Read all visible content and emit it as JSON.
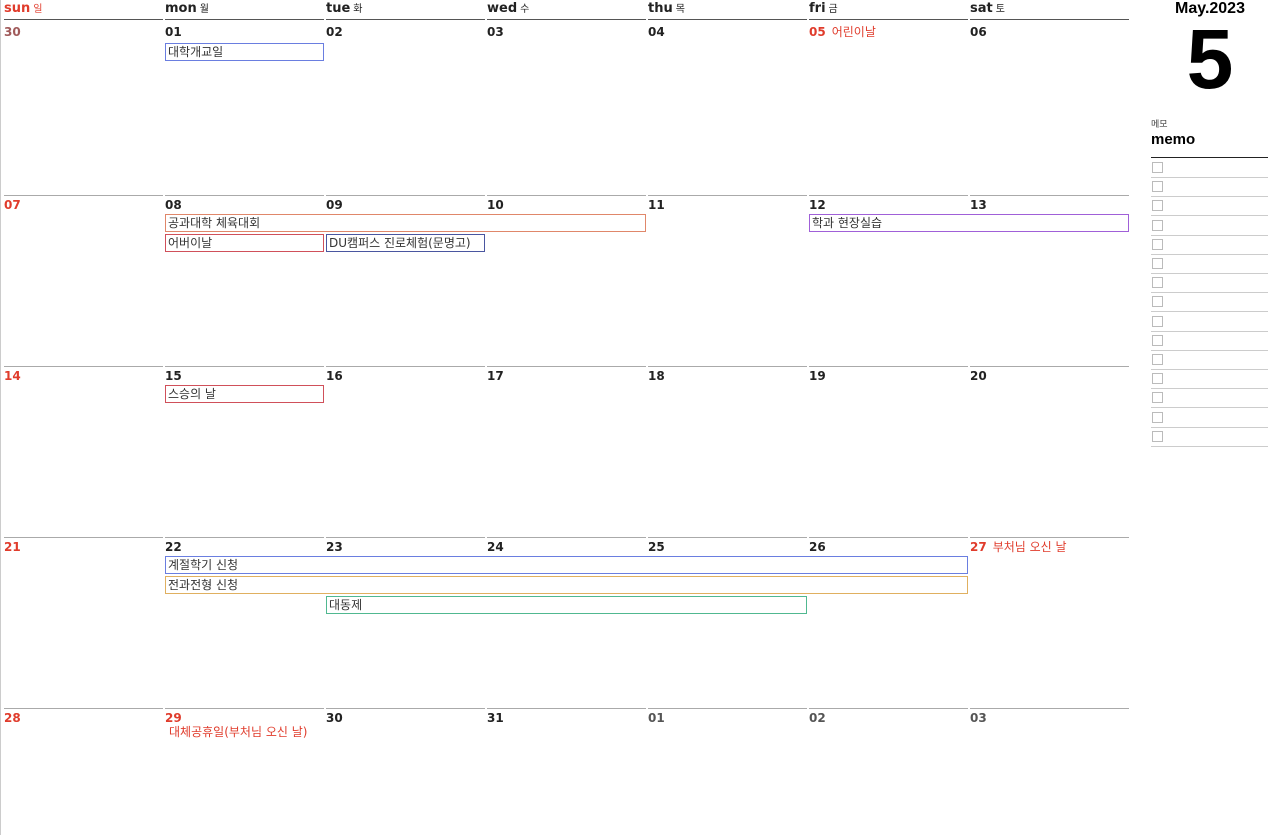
{
  "header": {
    "month_year": "May.2023",
    "month_number": "5"
  },
  "weekdays": [
    {
      "en": "sun",
      "ko": "일"
    },
    {
      "en": "mon",
      "ko": "월"
    },
    {
      "en": "tue",
      "ko": "화"
    },
    {
      "en": "wed",
      "ko": "수"
    },
    {
      "en": "thu",
      "ko": "목"
    },
    {
      "en": "fri",
      "ko": "금"
    },
    {
      "en": "sat",
      "ko": "토"
    }
  ],
  "weeks": [
    [
      {
        "d": "30",
        "color": "#a05a5a"
      },
      {
        "d": "01"
      },
      {
        "d": "02"
      },
      {
        "d": "03"
      },
      {
        "d": "04"
      },
      {
        "d": "05",
        "color": "#e03c2c",
        "holiday": "어린이날"
      },
      {
        "d": "06"
      }
    ],
    [
      {
        "d": "07",
        "color": "#e03c2c"
      },
      {
        "d": "08"
      },
      {
        "d": "09"
      },
      {
        "d": "10"
      },
      {
        "d": "11"
      },
      {
        "d": "12"
      },
      {
        "d": "13"
      }
    ],
    [
      {
        "d": "14",
        "color": "#e03c2c"
      },
      {
        "d": "15"
      },
      {
        "d": "16"
      },
      {
        "d": "17"
      },
      {
        "d": "18"
      },
      {
        "d": "19"
      },
      {
        "d": "20"
      }
    ],
    [
      {
        "d": "21",
        "color": "#e03c2c"
      },
      {
        "d": "22"
      },
      {
        "d": "23"
      },
      {
        "d": "24"
      },
      {
        "d": "25"
      },
      {
        "d": "26"
      },
      {
        "d": "27",
        "color": "#e03c2c",
        "holiday": "부처님 오신 날"
      }
    ],
    [
      {
        "d": "28",
        "color": "#e03c2c"
      },
      {
        "d": "29",
        "color": "#e03c2c",
        "holiday": "대체공휴일(부처님 오신 날)",
        "holiday_below": true
      },
      {
        "d": "30"
      },
      {
        "d": "31"
      },
      {
        "d": "01",
        "color": "#555"
      },
      {
        "d": "02",
        "color": "#555"
      },
      {
        "d": "03",
        "color": "#555"
      }
    ]
  ],
  "events": [
    {
      "title": "대학개교일",
      "week": 0,
      "start_day": "mon",
      "end_day": "mon",
      "color": "#6a7ee0"
    },
    {
      "title": "공과대학 체육대회",
      "week": 1,
      "start_day": "mon",
      "end_day": "wed",
      "color": "#e0876a"
    },
    {
      "title": "어버이날",
      "week": 1,
      "start_day": "mon",
      "end_day": "mon",
      "color": "#d0505a"
    },
    {
      "title": "DU캠퍼스 진로체험(문명고)",
      "week": 1,
      "start_day": "tue",
      "end_day": "tue",
      "color": "#4a56a0"
    },
    {
      "title": "학과 현장실습",
      "week": 1,
      "start_day": "fri",
      "end_day": "sat",
      "color": "#a060d8"
    },
    {
      "title": "스승의 날",
      "week": 2,
      "start_day": "mon",
      "end_day": "mon",
      "color": "#d0505a"
    },
    {
      "title": "계절학기 신청",
      "week": 3,
      "start_day": "mon",
      "end_day": "fri",
      "color": "#6a7ee0"
    },
    {
      "title": "전과전형 신청",
      "week": 3,
      "start_day": "mon",
      "end_day": "fri",
      "color": "#e0b060"
    },
    {
      "title": "대동제",
      "week": 3,
      "start_day": "tue",
      "end_day": "thu",
      "color": "#50b890"
    }
  ],
  "memo": {
    "label_ko": "메모",
    "title": "memo",
    "rows": 15
  }
}
